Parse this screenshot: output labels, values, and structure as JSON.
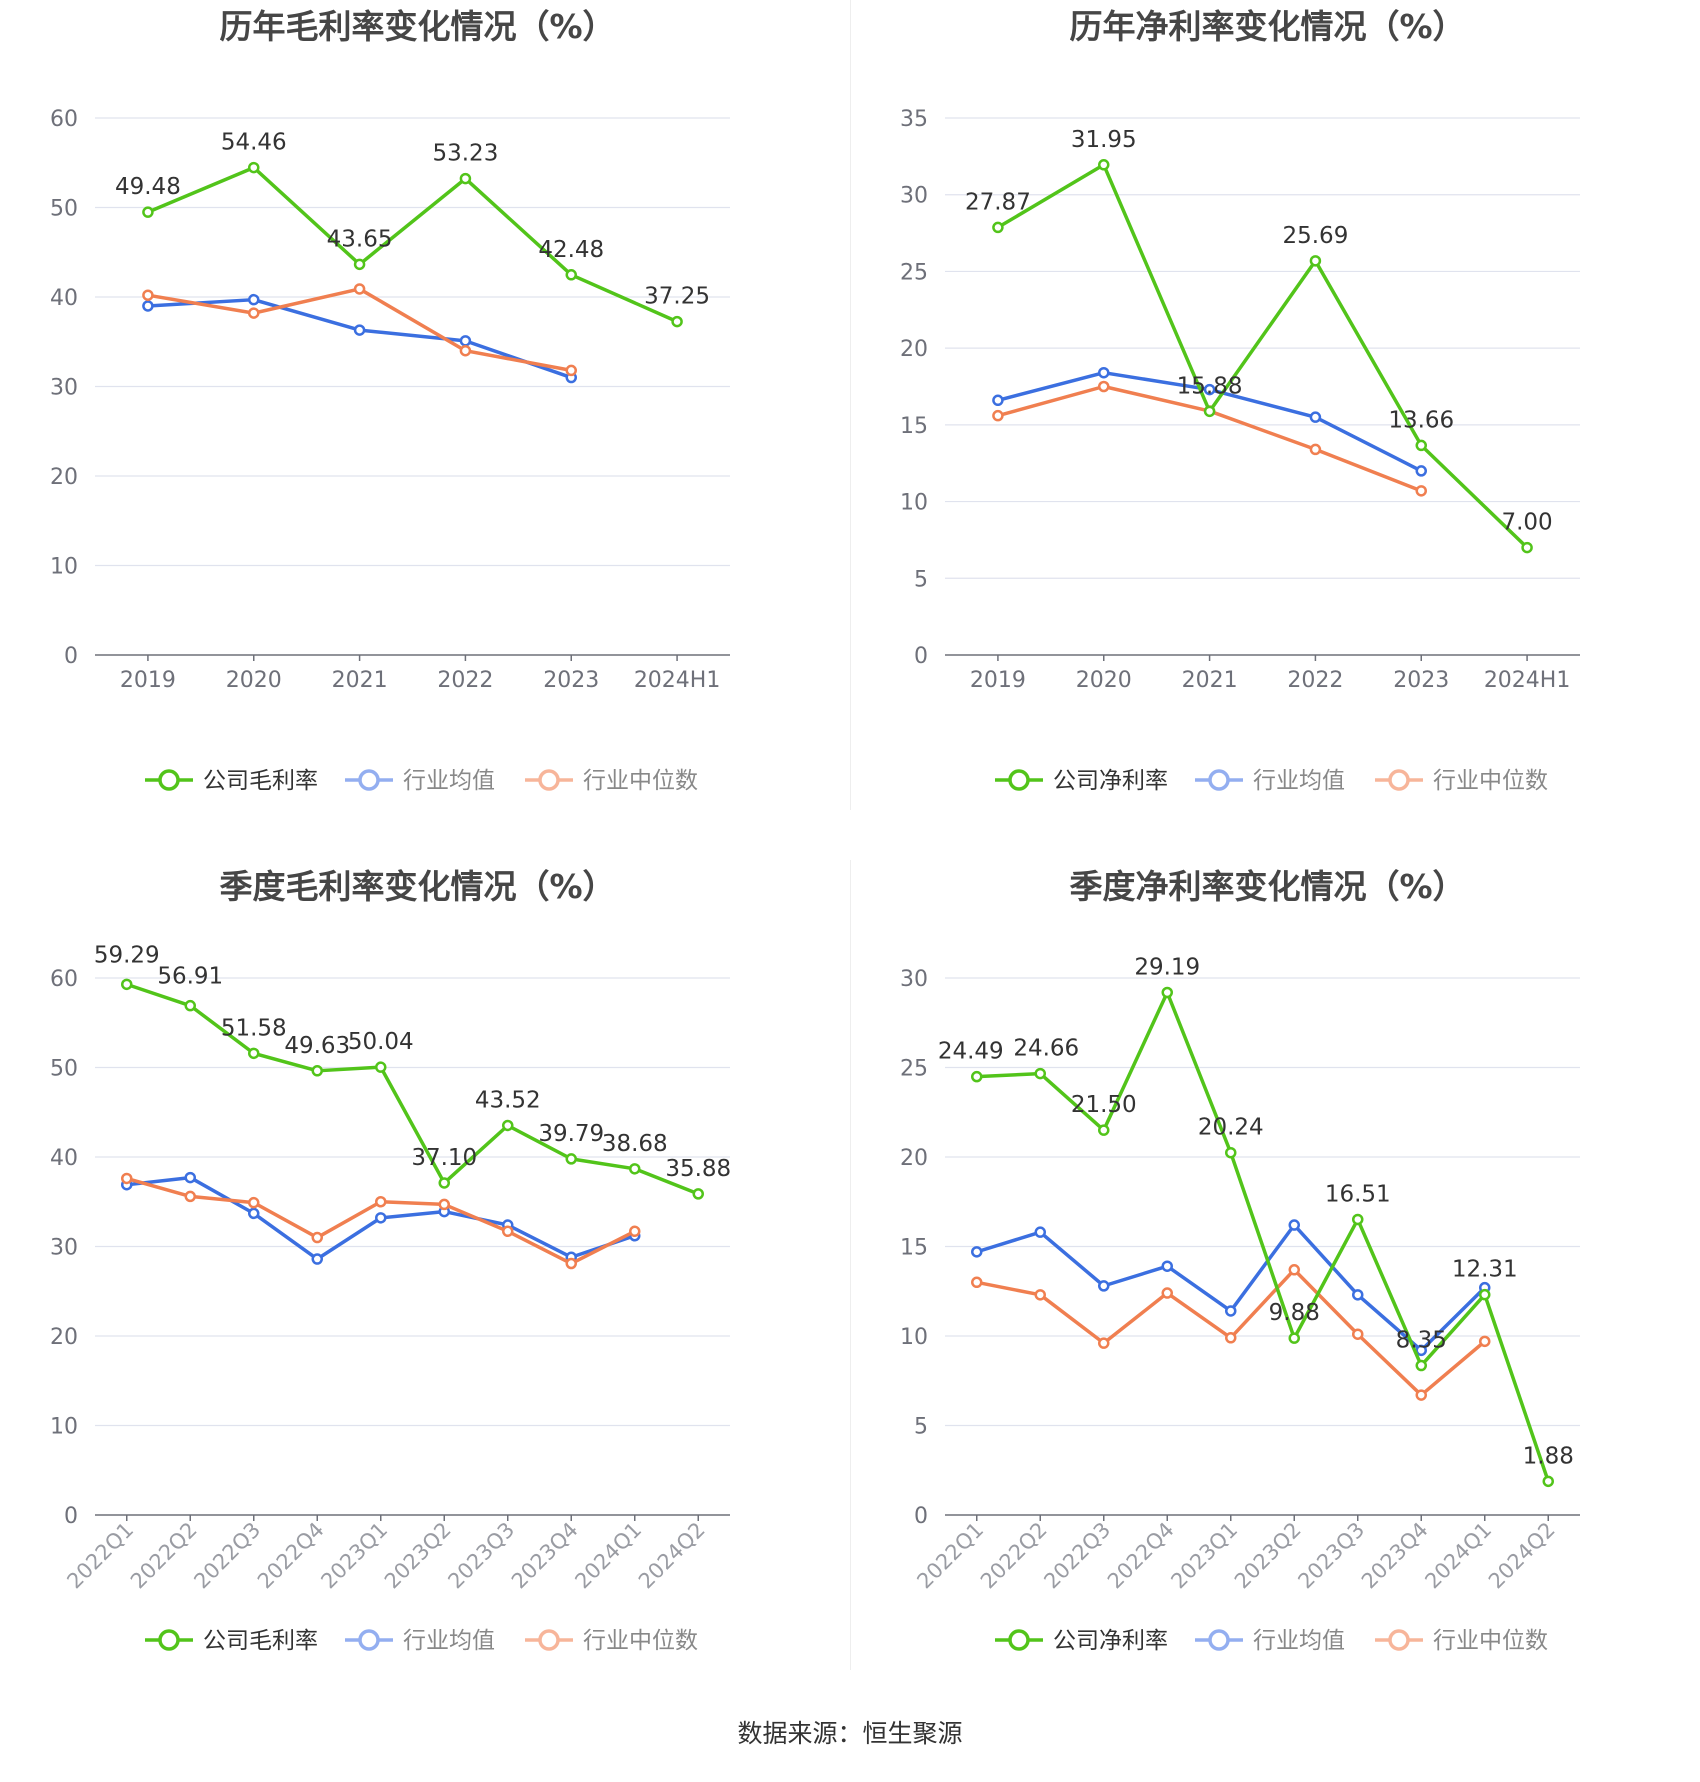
{
  "chart_data": [
    {
      "type": "line",
      "title": "历年毛利率变化情况（%）",
      "categories": [
        "2019",
        "2020",
        "2021",
        "2022",
        "2023",
        "2024H1"
      ],
      "ylim": [
        0,
        60
      ],
      "yticks": [
        0,
        10,
        20,
        30,
        40,
        50,
        60
      ],
      "grid": true,
      "legend_position": "bottom",
      "series": [
        {
          "name": "公司毛利率",
          "color": "#52c41a",
          "labeled": true,
          "values": [
            49.48,
            54.46,
            43.65,
            53.23,
            42.48,
            37.25
          ],
          "labels": [
            "49.48",
            "54.46",
            "43.65",
            "53.23",
            "42.48",
            "37.25"
          ]
        },
        {
          "name": "行业均值",
          "color": "#3b6fe0",
          "labeled": false,
          "values": [
            39.0,
            39.7,
            36.3,
            35.1,
            31.0,
            null
          ]
        },
        {
          "name": "行业中位数",
          "color": "#f07f50",
          "labeled": false,
          "values": [
            40.2,
            38.2,
            40.9,
            34.0,
            31.8,
            null
          ]
        }
      ]
    },
    {
      "type": "line",
      "title": "历年净利率变化情况（%）",
      "categories": [
        "2019",
        "2020",
        "2021",
        "2022",
        "2023",
        "2024H1"
      ],
      "ylim": [
        0,
        35
      ],
      "yticks": [
        0,
        5,
        10,
        15,
        20,
        25,
        30,
        35
      ],
      "grid": true,
      "legend_position": "bottom",
      "series": [
        {
          "name": "公司净利率",
          "color": "#52c41a",
          "labeled": true,
          "values": [
            27.87,
            31.95,
            15.88,
            25.69,
            13.66,
            7.0
          ],
          "labels": [
            "27.87",
            "31.95",
            "15.88",
            "25.69",
            "13.66",
            "7.00"
          ]
        },
        {
          "name": "行业均值",
          "color": "#3b6fe0",
          "labeled": false,
          "values": [
            16.6,
            18.4,
            17.3,
            15.5,
            12.0,
            null
          ]
        },
        {
          "name": "行业中位数",
          "color": "#f07f50",
          "labeled": false,
          "values": [
            15.6,
            17.5,
            15.9,
            13.4,
            10.7,
            null
          ]
        }
      ]
    },
    {
      "type": "line",
      "title": "季度毛利率变化情况（%）",
      "categories": [
        "2022Q1",
        "2022Q2",
        "2022Q3",
        "2022Q4",
        "2023Q1",
        "2023Q2",
        "2023Q3",
        "2023Q4",
        "2024Q1",
        "2024Q2"
      ],
      "ylim": [
        0,
        60
      ],
      "yticks": [
        0,
        10,
        20,
        30,
        40,
        50,
        60
      ],
      "grid": true,
      "legend_position": "bottom",
      "rotate_x_labels": true,
      "series": [
        {
          "name": "公司毛利率",
          "color": "#52c41a",
          "labeled": true,
          "values": [
            59.29,
            56.91,
            51.58,
            49.63,
            50.04,
            37.1,
            43.52,
            39.79,
            38.68,
            35.88
          ],
          "labels": [
            "59.29",
            "56.91",
            "51.58",
            "49.63",
            "50.04",
            "37.10",
            "43.52",
            "39.79",
            "38.68",
            "35.88"
          ]
        },
        {
          "name": "行业均值",
          "color": "#3b6fe0",
          "labeled": false,
          "values": [
            36.9,
            37.7,
            33.7,
            28.6,
            33.2,
            33.9,
            32.4,
            28.8,
            31.2,
            null
          ]
        },
        {
          "name": "行业中位数",
          "color": "#f07f50",
          "labeled": false,
          "values": [
            37.6,
            35.6,
            34.9,
            31.0,
            35.0,
            34.7,
            31.7,
            28.1,
            31.7,
            null
          ]
        }
      ]
    },
    {
      "type": "line",
      "title": "季度净利率变化情况（%）",
      "categories": [
        "2022Q1",
        "2022Q2",
        "2022Q3",
        "2022Q4",
        "2023Q1",
        "2023Q2",
        "2023Q3",
        "2023Q4",
        "2024Q1",
        "2024Q2"
      ],
      "ylim": [
        0,
        30
      ],
      "yticks": [
        0,
        5,
        10,
        15,
        20,
        25,
        30
      ],
      "grid": true,
      "legend_position": "bottom",
      "rotate_x_labels": true,
      "series": [
        {
          "name": "公司净利率",
          "color": "#52c41a",
          "labeled": true,
          "values": [
            24.49,
            24.66,
            21.5,
            29.19,
            20.24,
            9.88,
            16.51,
            8.35,
            12.31,
            1.88
          ],
          "labels": [
            "24.49",
            "24.66",
            "21.50",
            "29.19",
            "20.24",
            "9.88",
            "16.51",
            "8.35",
            "12.31",
            "1.88"
          ]
        },
        {
          "name": "行业均值",
          "color": "#3b6fe0",
          "labeled": false,
          "values": [
            14.7,
            15.8,
            12.8,
            13.9,
            11.4,
            16.2,
            12.3,
            9.2,
            12.7,
            null
          ]
        },
        {
          "name": "行业中位数",
          "color": "#f07f50",
          "labeled": false,
          "values": [
            13.0,
            12.3,
            9.6,
            12.4,
            9.9,
            13.7,
            10.1,
            6.7,
            9.7,
            null
          ]
        }
      ]
    }
  ],
  "source": "数据来源：恒生聚源"
}
